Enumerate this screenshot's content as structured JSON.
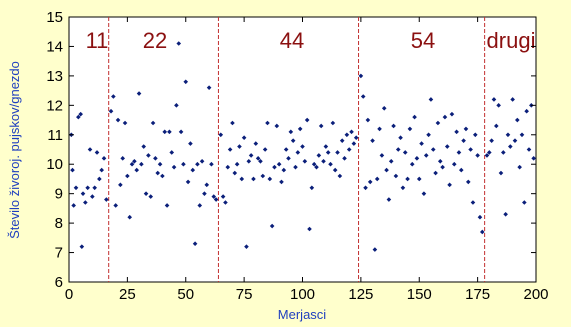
{
  "chart_data": {
    "type": "scatter",
    "xlabel": "Merjasci",
    "ylabel": "Število živoroj. pujskov/gnezdo",
    "xlim": [
      0,
      200
    ],
    "ylim": [
      6,
      15
    ],
    "xticks": [
      "0",
      "50",
      "100",
      "150",
      "200"
    ],
    "xticks_minor": [
      "25",
      "75",
      "125",
      "175"
    ],
    "yticks": [
      "6",
      "7",
      "8",
      "9",
      "10",
      "11",
      "12",
      "13",
      "14",
      "15"
    ],
    "grid": false,
    "groups": [
      {
        "label": "11",
        "x_start": 0,
        "x_end": 17
      },
      {
        "label": "22",
        "x_start": 17,
        "x_end": 64
      },
      {
        "label": "44",
        "x_start": 64,
        "x_end": 124
      },
      {
        "label": "54",
        "x_start": 124,
        "x_end": 178
      },
      {
        "label": "drugi",
        "x_start": 178,
        "x_end": 200
      }
    ],
    "separators_x": [
      17,
      64,
      124,
      178
    ],
    "point_color": "#0b1f7a",
    "separator_color": "#c23030",
    "points": [
      [
        1,
        11.0
      ],
      [
        1.5,
        9.8
      ],
      [
        2,
        8.6
      ],
      [
        3,
        9.2
      ],
      [
        4,
        11.6
      ],
      [
        5,
        11.7
      ],
      [
        5.5,
        7.2
      ],
      [
        6,
        9.0
      ],
      [
        7,
        8.7
      ],
      [
        8,
        9.2
      ],
      [
        9,
        10.5
      ],
      [
        10,
        8.9
      ],
      [
        11,
        9.2
      ],
      [
        12,
        10.4
      ],
      [
        13,
        9.5
      ],
      [
        14,
        9.8
      ],
      [
        15,
        10.2
      ],
      [
        16,
        8.8
      ],
      [
        18,
        11.8
      ],
      [
        19,
        12.3
      ],
      [
        20,
        8.6
      ],
      [
        21,
        11.5
      ],
      [
        22,
        9.3
      ],
      [
        23,
        10.2
      ],
      [
        24,
        11.4
      ],
      [
        25,
        9.6
      ],
      [
        26,
        8.2
      ],
      [
        27,
        10.0
      ],
      [
        28,
        10.1
      ],
      [
        29,
        9.8
      ],
      [
        30,
        12.4
      ],
      [
        31,
        10.0
      ],
      [
        32,
        10.6
      ],
      [
        33,
        9.0
      ],
      [
        34,
        10.3
      ],
      [
        35,
        8.9
      ],
      [
        36,
        11.4
      ],
      [
        37,
        10.2
      ],
      [
        38,
        9.7
      ],
      [
        39,
        10.0
      ],
      [
        40,
        9.6
      ],
      [
        41,
        11.1
      ],
      [
        42,
        8.6
      ],
      [
        43,
        11.1
      ],
      [
        44,
        10.4
      ],
      [
        45,
        9.9
      ],
      [
        46,
        12.0
      ],
      [
        47,
        14.1
      ],
      [
        48,
        11.1
      ],
      [
        49,
        10.0
      ],
      [
        50,
        12.8
      ],
      [
        51,
        9.4
      ],
      [
        52,
        10.7
      ],
      [
        53,
        9.8
      ],
      [
        54,
        7.3
      ],
      [
        55,
        10.0
      ],
      [
        56,
        8.6
      ],
      [
        57,
        10.1
      ],
      [
        58,
        9.0
      ],
      [
        59,
        9.3
      ],
      [
        60,
        12.6
      ],
      [
        61,
        10.0
      ],
      [
        62,
        8.9
      ],
      [
        63,
        8.8
      ],
      [
        65,
        11.0
      ],
      [
        66,
        8.9
      ],
      [
        67,
        8.7
      ],
      [
        68,
        9.9
      ],
      [
        69,
        10.5
      ],
      [
        70,
        11.4
      ],
      [
        71,
        9.7
      ],
      [
        72,
        10.0
      ],
      [
        73,
        10.6
      ],
      [
        74,
        9.5
      ],
      [
        75,
        10.9
      ],
      [
        76,
        7.2
      ],
      [
        77,
        10.1
      ],
      [
        78,
        10.3
      ],
      [
        79,
        9.5
      ],
      [
        80,
        10.7
      ],
      [
        81,
        10.2
      ],
      [
        82,
        10.1
      ],
      [
        83,
        9.6
      ],
      [
        84,
        10.5
      ],
      [
        85,
        11.4
      ],
      [
        86,
        9.5
      ],
      [
        87,
        7.9
      ],
      [
        88,
        9.9
      ],
      [
        89,
        11.3
      ],
      [
        90,
        10.0
      ],
      [
        91,
        9.4
      ],
      [
        92,
        9.8
      ],
      [
        93,
        10.5
      ],
      [
        94,
        10.2
      ],
      [
        95,
        11.1
      ],
      [
        96,
        10.8
      ],
      [
        97,
        9.9
      ],
      [
        98,
        10.4
      ],
      [
        99,
        11.2
      ],
      [
        100,
        10.6
      ],
      [
        101,
        10.1
      ],
      [
        102,
        11.5
      ],
      [
        103,
        7.8
      ],
      [
        104,
        9.2
      ],
      [
        105,
        10.0
      ],
      [
        106,
        9.9
      ],
      [
        107,
        10.3
      ],
      [
        108,
        11.3
      ],
      [
        109,
        10.1
      ],
      [
        110,
        10.6
      ],
      [
        111,
        10.4
      ],
      [
        112,
        10.0
      ],
      [
        113,
        11.4
      ],
      [
        114,
        9.8
      ],
      [
        115,
        10.4
      ],
      [
        116,
        9.6
      ],
      [
        117,
        10.8
      ],
      [
        118,
        10.2
      ],
      [
        119,
        11.0
      ],
      [
        120,
        10.5
      ],
      [
        121,
        11.1
      ],
      [
        122,
        10.7
      ],
      [
        123,
        10.9
      ],
      [
        125,
        13.0
      ],
      [
        126,
        12.3
      ],
      [
        127,
        9.2
      ],
      [
        128,
        11.5
      ],
      [
        129,
        9.4
      ],
      [
        130,
        10.8
      ],
      [
        131,
        7.1
      ],
      [
        132,
        9.5
      ],
      [
        133,
        11.2
      ],
      [
        134,
        10.3
      ],
      [
        135,
        11.9
      ],
      [
        136,
        9.8
      ],
      [
        137,
        8.8
      ],
      [
        138,
        10.1
      ],
      [
        139,
        11.3
      ],
      [
        140,
        9.6
      ],
      [
        141,
        10.5
      ],
      [
        142,
        10.9
      ],
      [
        143,
        9.2
      ],
      [
        144,
        10.4
      ],
      [
        145,
        9.5
      ],
      [
        146,
        11.2
      ],
      [
        147,
        10.0
      ],
      [
        148,
        11.6
      ],
      [
        149,
        10.2
      ],
      [
        150,
        9.5
      ],
      [
        151,
        10.7
      ],
      [
        152,
        9.0
      ],
      [
        153,
        10.3
      ],
      [
        154,
        11.0
      ],
      [
        155,
        12.2
      ],
      [
        156,
        10.5
      ],
      [
        157,
        9.7
      ],
      [
        158,
        11.4
      ],
      [
        159,
        10.1
      ],
      [
        160,
        9.9
      ],
      [
        161,
        11.6
      ],
      [
        162,
        10.6
      ],
      [
        163,
        9.3
      ],
      [
        164,
        11.7
      ],
      [
        165,
        10.0
      ],
      [
        166,
        11.1
      ],
      [
        167,
        10.4
      ],
      [
        168,
        9.8
      ],
      [
        169,
        10.8
      ],
      [
        170,
        11.2
      ],
      [
        171,
        9.4
      ],
      [
        172,
        10.5
      ],
      [
        173,
        8.7
      ],
      [
        174,
        11.0
      ],
      [
        175,
        10.3
      ],
      [
        176,
        8.2
      ],
      [
        177,
        7.7
      ],
      [
        179,
        10.3
      ],
      [
        180,
        10.4
      ],
      [
        181,
        10.8
      ],
      [
        182,
        12.2
      ],
      [
        183,
        11.3
      ],
      [
        184,
        12.0
      ],
      [
        185,
        9.7
      ],
      [
        186,
        10.4
      ],
      [
        187,
        8.3
      ],
      [
        188,
        11.0
      ],
      [
        189,
        10.6
      ],
      [
        190,
        12.2
      ],
      [
        191,
        10.8
      ],
      [
        192,
        11.5
      ],
      [
        193,
        9.9
      ],
      [
        194,
        11.0
      ],
      [
        195,
        8.7
      ],
      [
        196,
        11.8
      ],
      [
        197,
        10.5
      ],
      [
        198,
        12.0
      ],
      [
        199,
        10.2
      ]
    ]
  }
}
